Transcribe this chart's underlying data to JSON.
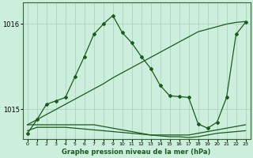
{
  "bg_color": "#cceedd",
  "grid_color": "#aaccbb",
  "line_color": "#1a5c1a",
  "xlabel": "Graphe pression niveau de la mer (hPa)",
  "ylim": [
    1014.65,
    1016.25
  ],
  "yticks": [
    1015,
    1016
  ],
  "xticks": [
    0,
    1,
    2,
    3,
    4,
    5,
    6,
    7,
    8,
    9,
    10,
    11,
    12,
    13,
    14,
    15,
    16,
    17,
    18,
    19,
    20,
    21,
    22,
    23
  ],
  "series": [
    {
      "x": [
        0,
        1,
        2,
        3,
        4,
        5,
        6,
        7,
        8,
        9,
        10,
        11,
        12,
        13,
        14,
        15,
        16,
        17,
        18,
        19,
        20,
        21,
        22,
        23
      ],
      "y": [
        1014.72,
        1014.88,
        1015.06,
        1015.1,
        1015.14,
        1015.38,
        1015.62,
        1015.88,
        1016.0,
        1016.1,
        1015.9,
        1015.78,
        1015.62,
        1015.48,
        1015.28,
        1015.16,
        1015.15,
        1015.14,
        1014.83,
        1014.78,
        1014.85,
        1015.14,
        1015.88,
        1016.02
      ],
      "with_markers": true,
      "lw": 0.9
    },
    {
      "x": [
        0,
        1,
        2,
        3,
        4,
        5,
        6,
        7,
        8,
        9,
        10,
        11,
        12,
        13,
        14,
        15,
        16,
        17,
        18,
        19,
        20,
        21,
        22,
        23
      ],
      "y": [
        1014.82,
        1014.88,
        1014.94,
        1015.0,
        1015.06,
        1015.12,
        1015.18,
        1015.24,
        1015.3,
        1015.37,
        1015.43,
        1015.49,
        1015.55,
        1015.61,
        1015.67,
        1015.73,
        1015.79,
        1015.85,
        1015.91,
        1015.94,
        1015.97,
        1016.0,
        1016.02,
        1016.03
      ],
      "with_markers": false,
      "lw": 0.9
    },
    {
      "x": [
        0,
        1,
        2,
        3,
        4,
        5,
        6,
        7,
        8,
        9,
        10,
        11,
        12,
        13,
        14,
        15,
        16,
        17,
        18,
        19,
        20,
        21,
        22,
        23
      ],
      "y": [
        1014.82,
        1014.82,
        1014.82,
        1014.82,
        1014.82,
        1014.82,
        1014.82,
        1014.82,
        1014.8,
        1014.78,
        1014.76,
        1014.74,
        1014.72,
        1014.7,
        1014.7,
        1014.7,
        1014.7,
        1014.7,
        1014.72,
        1014.74,
        1014.76,
        1014.78,
        1014.8,
        1014.82
      ],
      "with_markers": false,
      "lw": 0.9
    },
    {
      "x": [
        0,
        1,
        2,
        3,
        4,
        5,
        6,
        7,
        8,
        9,
        10,
        11,
        12,
        13,
        14,
        15,
        16,
        17,
        18,
        19,
        20,
        21,
        22,
        23
      ],
      "y": [
        1014.75,
        1014.79,
        1014.79,
        1014.79,
        1014.79,
        1014.78,
        1014.77,
        1014.76,
        1014.75,
        1014.74,
        1014.73,
        1014.72,
        1014.71,
        1014.7,
        1014.69,
        1014.68,
        1014.68,
        1014.67,
        1014.68,
        1014.7,
        1014.72,
        1014.73,
        1014.74,
        1014.75
      ],
      "with_markers": false,
      "lw": 0.9
    }
  ]
}
